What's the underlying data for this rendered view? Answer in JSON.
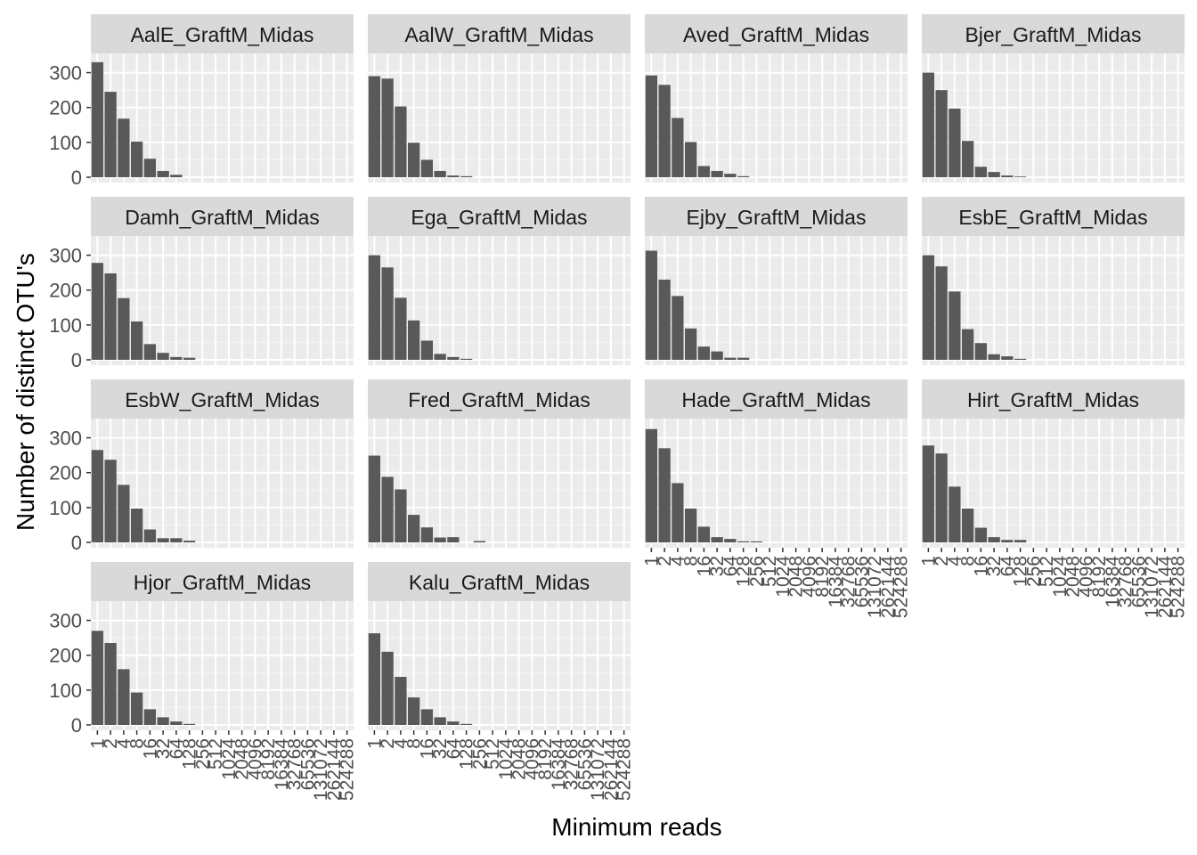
{
  "chart_data": {
    "type": "bar",
    "xlabel": "Minimum reads",
    "ylabel": "Number of distinct OTU's",
    "ylim": [
      0,
      350
    ],
    "yticks": [
      0,
      100,
      200,
      300
    ],
    "categories": [
      "1",
      "2",
      "4",
      "8",
      "16",
      "32",
      "64",
      "128",
      "256",
      "512",
      "1024",
      "2048",
      "4096",
      "8192",
      "16384",
      "32768",
      "65536",
      "131072",
      "262144",
      "524288"
    ],
    "grid": true,
    "facet_layout": "4 columns, 4 rows, free-standing panels, shared axes",
    "bar_color": "#595959",
    "panel_background": "#ebebeb",
    "strip_background": "#d9d9d9",
    "panels": [
      {
        "title": "AalE_GraftM_Midas",
        "values": [
          330,
          245,
          168,
          102,
          53,
          18,
          7,
          0,
          0,
          0,
          0,
          0,
          0,
          0,
          0,
          0,
          0,
          0,
          0,
          0
        ]
      },
      {
        "title": "AalW_GraftM_Midas",
        "values": [
          290,
          283,
          203,
          99,
          50,
          18,
          5,
          3,
          0,
          0,
          0,
          0,
          0,
          0,
          0,
          0,
          0,
          0,
          0,
          0
        ]
      },
      {
        "title": "Aved_GraftM_Midas",
        "values": [
          292,
          265,
          170,
          101,
          32,
          18,
          10,
          3,
          0,
          0,
          0,
          0,
          0,
          0,
          0,
          0,
          0,
          0,
          0,
          0
        ]
      },
      {
        "title": "Bjer_GraftM_Midas",
        "values": [
          300,
          250,
          197,
          104,
          30,
          15,
          5,
          2,
          0,
          0,
          0,
          0,
          0,
          0,
          0,
          0,
          0,
          0,
          0,
          0
        ]
      },
      {
        "title": "Damh_GraftM_Midas",
        "values": [
          278,
          248,
          177,
          110,
          45,
          20,
          8,
          6,
          0,
          0,
          0,
          0,
          0,
          0,
          0,
          0,
          0,
          0,
          0,
          0
        ]
      },
      {
        "title": "Ega_GraftM_Midas",
        "values": [
          300,
          265,
          178,
          113,
          55,
          17,
          8,
          3,
          0,
          0,
          0,
          0,
          0,
          0,
          0,
          0,
          0,
          0,
          0,
          0
        ]
      },
      {
        "title": "Ejby_GraftM_Midas",
        "values": [
          313,
          230,
          183,
          90,
          38,
          24,
          6,
          6,
          0,
          0,
          0,
          0,
          0,
          0,
          0,
          0,
          0,
          0,
          0,
          0
        ]
      },
      {
        "title": "EsbE_GraftM_Midas",
        "values": [
          300,
          268,
          196,
          88,
          48,
          16,
          10,
          3,
          0,
          0,
          0,
          0,
          0,
          0,
          0,
          0,
          0,
          0,
          0,
          0
        ]
      },
      {
        "title": "EsbW_GraftM_Midas",
        "values": [
          265,
          237,
          165,
          97,
          37,
          12,
          12,
          5,
          0,
          0,
          0,
          0,
          0,
          0,
          0,
          0,
          0,
          0,
          0,
          0
        ]
      },
      {
        "title": "Fred_GraftM_Midas",
        "values": [
          249,
          188,
          152,
          79,
          43,
          14,
          15,
          0,
          4,
          0,
          0,
          0,
          0,
          0,
          0,
          0,
          0,
          0,
          0,
          0
        ]
      },
      {
        "title": "Hade_GraftM_Midas",
        "values": [
          325,
          270,
          170,
          97,
          45,
          15,
          10,
          3,
          3,
          0,
          0,
          0,
          0,
          0,
          0,
          0,
          0,
          0,
          0,
          0
        ]
      },
      {
        "title": "Hirt_GraftM_Midas",
        "values": [
          278,
          255,
          160,
          97,
          42,
          15,
          7,
          7,
          0,
          0,
          0,
          0,
          0,
          0,
          0,
          0,
          0,
          0,
          0,
          0
        ]
      },
      {
        "title": "Hjor_GraftM_Midas",
        "values": [
          270,
          235,
          160,
          93,
          45,
          22,
          10,
          3,
          0,
          0,
          0,
          0,
          0,
          0,
          0,
          0,
          0,
          0,
          0,
          0
        ]
      },
      {
        "title": "Kalu_GraftM_Midas",
        "values": [
          263,
          210,
          138,
          79,
          45,
          22,
          10,
          3,
          0,
          0,
          0,
          0,
          0,
          0,
          0,
          0,
          0,
          0,
          0,
          0
        ]
      }
    ]
  }
}
